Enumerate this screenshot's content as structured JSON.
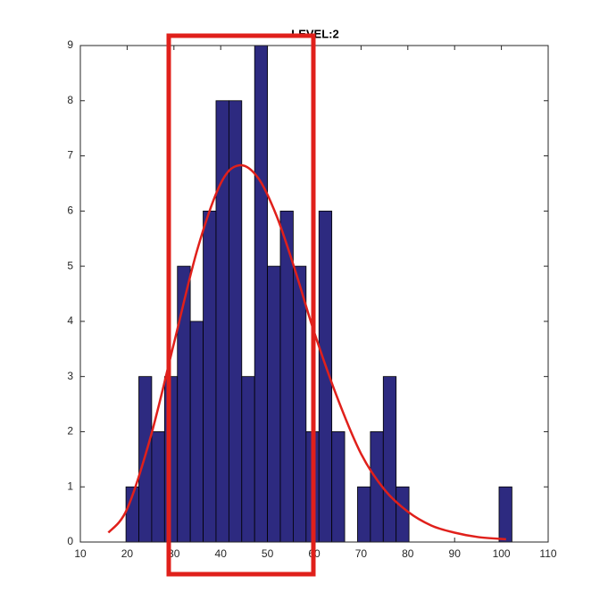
{
  "chart_data": {
    "type": "histogram",
    "title": "LEVEL:2",
    "bins": [
      19.75,
      22.5,
      25.25,
      28,
      30.75,
      33.5,
      36.25,
      39,
      41.75,
      44.5,
      47.25,
      50,
      52.75,
      55.5,
      58.25,
      61,
      63.75,
      66.5,
      69.25,
      72,
      74.75,
      77.5,
      80.25,
      83,
      85.75,
      88.5,
      91.25,
      94,
      96.75,
      99.5,
      102.25
    ],
    "values": [
      1,
      3,
      2,
      3,
      5,
      4,
      6,
      8,
      8,
      3,
      9,
      5,
      6,
      5,
      2,
      6,
      2,
      0,
      1,
      2,
      3,
      1,
      0,
      0,
      0,
      0,
      0,
      0,
      0,
      1
    ],
    "color": "#2d2a80",
    "curve": {
      "color": "#e0201b",
      "x": [
        16,
        20,
        25,
        30,
        35,
        40,
        44,
        48,
        52,
        56,
        60,
        65,
        70,
        75,
        80,
        85,
        90,
        95,
        101
      ],
      "y": [
        0.17,
        0.6,
        1.9,
        3.6,
        5.3,
        6.5,
        6.83,
        6.6,
        5.9,
        4.9,
        3.8,
        2.6,
        1.6,
        0.95,
        0.55,
        0.3,
        0.17,
        0.09,
        0.05
      ]
    },
    "xlim": [
      10,
      110
    ],
    "xticks": [
      10,
      20,
      30,
      40,
      50,
      60,
      70,
      80,
      90,
      100,
      110
    ],
    "ylim": [
      0,
      9
    ],
    "yticks": [
      0,
      1,
      2,
      3,
      4,
      5,
      6,
      7,
      8,
      9
    ]
  }
}
